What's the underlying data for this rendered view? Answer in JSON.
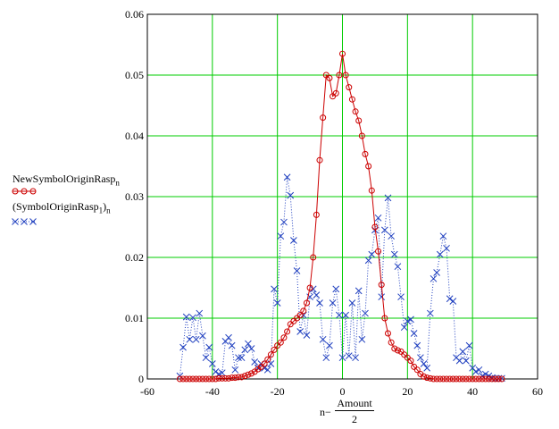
{
  "chart_data": {
    "type": "line",
    "xlim": [
      -60,
      60
    ],
    "ylim": [
      0,
      0.06
    ],
    "x_ticks": [
      "-60",
      "-40",
      "-20",
      "0",
      "20",
      "40",
      "60"
    ],
    "y_ticks": [
      "0",
      "0.01",
      "0.02",
      "0.03",
      "0.04",
      "0.05",
      "0.06"
    ],
    "grid": true,
    "legend": [
      {
        "label": "NewSymbolOriginRasp",
        "subscript": "n",
        "color": "#cc0000",
        "marker": "circle",
        "line": "solid"
      },
      {
        "label": "(SymbolOriginRasp",
        "subscript": "1",
        "suffix": ")",
        "subscript2": "n",
        "color": "#1f3fbf",
        "marker": "x",
        "line": "dotted"
      }
    ],
    "xlabel": {
      "prefix": "n−",
      "numerator": "Amount",
      "denominator": "2"
    },
    "series": [
      {
        "name": "NewSymbolOriginRasp",
        "color": "#cc0000",
        "x": [
          -50,
          -49,
          -48,
          -47,
          -46,
          -45,
          -44,
          -43,
          -42,
          -41,
          -40,
          -39,
          -38,
          -37,
          -36,
          -35,
          -34,
          -33,
          -32,
          -31,
          -30,
          -29,
          -28,
          -27,
          -26,
          -25,
          -24,
          -23,
          -22,
          -21,
          -20,
          -19,
          -18,
          -17,
          -16,
          -15,
          -14,
          -13,
          -12,
          -11,
          -10,
          -9,
          -8,
          -7,
          -6,
          -5,
          -4,
          -3,
          -2,
          -1,
          0,
          1,
          2,
          3,
          4,
          5,
          6,
          7,
          8,
          9,
          10,
          11,
          12,
          13,
          14,
          15,
          16,
          17,
          18,
          19,
          20,
          21,
          22,
          23,
          24,
          25,
          26,
          27,
          28,
          29,
          30,
          31,
          32,
          33,
          34,
          35,
          36,
          37,
          38,
          39,
          40,
          41,
          42,
          43,
          44,
          45,
          46,
          47,
          48,
          49
        ],
        "y": [
          0,
          0,
          0,
          0,
          0,
          0,
          0,
          0,
          0,
          0,
          0,
          0,
          0.0001,
          0.0001,
          0.0001,
          0.0001,
          0.0002,
          0.0002,
          0.0003,
          0.0003,
          0.0005,
          0.0007,
          0.0009,
          0.0012,
          0.0016,
          0.002,
          0.0025,
          0.0032,
          0.004,
          0.0048,
          0.0055,
          0.006,
          0.0068,
          0.0078,
          0.009,
          0.0095,
          0.01,
          0.0105,
          0.0112,
          0.0125,
          0.015,
          0.02,
          0.027,
          0.036,
          0.043,
          0.05,
          0.0495,
          0.0465,
          0.047,
          0.05,
          0.0535,
          0.05,
          0.048,
          0.046,
          0.044,
          0.0425,
          0.04,
          0.037,
          0.035,
          0.031,
          0.025,
          0.021,
          0.0155,
          0.01,
          0.0075,
          0.006,
          0.005,
          0.0047,
          0.0045,
          0.004,
          0.0035,
          0.003,
          0.002,
          0.0015,
          0.0008,
          0.0004,
          0.0002,
          0.0001,
          0,
          0,
          0,
          0,
          0,
          0,
          0,
          0,
          0,
          0,
          0,
          0,
          0,
          0,
          0,
          0,
          0,
          0,
          0,
          0,
          0,
          0
        ]
      },
      {
        "name": "(SymbolOriginRasp1)",
        "color": "#1f3fbf",
        "x": [
          -50,
          -49,
          -48,
          -47,
          -46,
          -45,
          -44,
          -43,
          -42,
          -41,
          -40,
          -39,
          -38,
          -37,
          -36,
          -35,
          -34,
          -33,
          -32,
          -31,
          -30,
          -29,
          -28,
          -27,
          -26,
          -25,
          -24,
          -23,
          -22,
          -21,
          -20,
          -19,
          -18,
          -17,
          -16,
          -15,
          -14,
          -13,
          -12,
          -11,
          -10,
          -9,
          -8,
          -7,
          -6,
          -5,
          -4,
          -3,
          -2,
          -1,
          0,
          1,
          2,
          3,
          4,
          5,
          6,
          7,
          8,
          9,
          10,
          11,
          12,
          13,
          14,
          15,
          16,
          17,
          18,
          19,
          20,
          21,
          22,
          23,
          24,
          25,
          26,
          27,
          28,
          29,
          30,
          31,
          32,
          33,
          34,
          35,
          36,
          37,
          38,
          39,
          40,
          41,
          42,
          43,
          44,
          45,
          46,
          47,
          48,
          49
        ],
        "y": [
          0.0005,
          0.0052,
          0.0102,
          0.0065,
          0.0101,
          0.0065,
          0.0108,
          0.0071,
          0.0035,
          0.0052,
          0.0025,
          0.0012,
          0.0008,
          0.001,
          0.0062,
          0.0068,
          0.0055,
          0.0015,
          0.0035,
          0.0035,
          0.0048,
          0.0058,
          0.005,
          0.0028,
          0.0018,
          0.0025,
          0.0018,
          0.0015,
          0.0025,
          0.0148,
          0.0125,
          0.0235,
          0.0258,
          0.0332,
          0.0302,
          0.0228,
          0.0178,
          0.0078,
          0.0105,
          0.0072,
          0.0135,
          0.0148,
          0.0138,
          0.0125,
          0.0065,
          0.0035,
          0.0055,
          0.0125,
          0.0148,
          0.0105,
          0.0035,
          0.0105,
          0.0038,
          0.0125,
          0.0035,
          0.0145,
          0.0065,
          0.0108,
          0.0195,
          0.0205,
          0.0245,
          0.0265,
          0.0135,
          0.0245,
          0.0298,
          0.0235,
          0.0205,
          0.0185,
          0.0135,
          0.0085,
          0.0095,
          0.0098,
          0.0075,
          0.0055,
          0.0035,
          0.0025,
          0.0018,
          0.0108,
          0.0165,
          0.0175,
          0.0205,
          0.0235,
          0.0215,
          0.0132,
          0.0128,
          0.0035,
          0.003,
          0.0045,
          0.003,
          0.0055,
          0.0018,
          0.0012,
          0.0015,
          0.0005,
          0.0008,
          0.0005,
          0.0002,
          0.0001,
          0.0001,
          0.0001
        ]
      }
    ]
  }
}
